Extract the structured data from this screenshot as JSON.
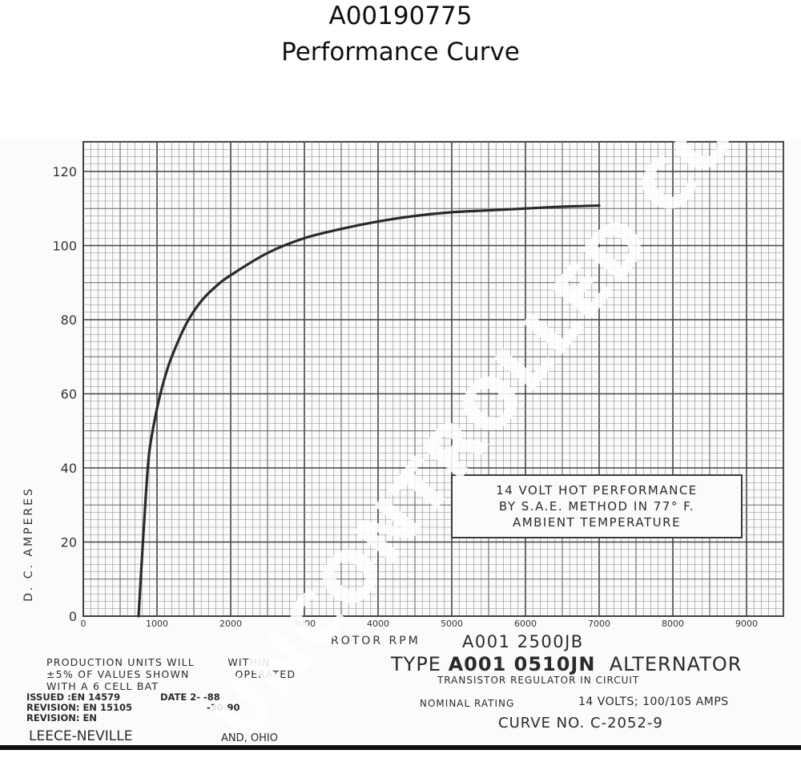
{
  "header": {
    "title": "A00190775",
    "subtitle": "Performance Curve"
  },
  "chart_data": {
    "type": "line",
    "xlabel": "ROTOR RPM",
    "ylabel": "D. C. AMPERES",
    "xlim": [
      0,
      9500
    ],
    "ylim": [
      0,
      128
    ],
    "grid": true,
    "x_ticks": [
      "0",
      "1000",
      "2000",
      "3000",
      "4000",
      "5000",
      "6000",
      "7000",
      "8000",
      "9000"
    ],
    "y_ticks": [
      "0",
      "20",
      "40",
      "60",
      "80",
      "100",
      "120"
    ],
    "series": [
      {
        "x": [
          750,
          800,
          850,
          900,
          1000,
          1100,
          1200,
          1400,
          1600,
          1800,
          2000,
          2500,
          3000,
          3500,
          4000,
          4500,
          5000,
          5500,
          6000,
          6500,
          7000
        ],
        "y": [
          0,
          17,
          33,
          45,
          56,
          64,
          70,
          79,
          85,
          89,
          92,
          98,
          102,
          104.5,
          106.5,
          108,
          109,
          109.5,
          110,
          110.5,
          110.8
        ]
      }
    ],
    "color": "#2a2a2a"
  },
  "note": {
    "line1": "14 VOLT HOT PERFORMANCE",
    "line2": "BY S.A.E. METHOD IN 77° F.",
    "line3": "AMBIENT TEMPERATURE"
  },
  "footer": {
    "production_1": "PRODUCTION UNITS WILL",
    "production_1b": "WITHIN",
    "production_2": "±5% OF VALUES SHOWN",
    "production_2b": "OPERATED",
    "production_3": "WITH A 6 CELL BAT",
    "issued": "ISSUED :EN 14579",
    "issued_date": "DATE 2-  -88",
    "revision1": "REVISION: EN 15105",
    "revision1_date": "-30-90",
    "revision2": "REVISION: EN",
    "company": "LEECE-NEVILLE",
    "city": "AND, OHIO",
    "type_alt": "A001 2500JB",
    "type_prefix": "TYPE",
    "type_model": "A001 0510JN",
    "type_suffix": "ALTERNATOR",
    "regulator": "TRANSISTOR REGULATOR IN CIRCUIT",
    "nominal_label": "NOMINAL RATING",
    "nominal_value": "14 VOLTS; 100/105 AMPS",
    "curve_no": "CURVE NO. C-2052-9"
  },
  "watermark": "UNCONTROLLED COPY"
}
